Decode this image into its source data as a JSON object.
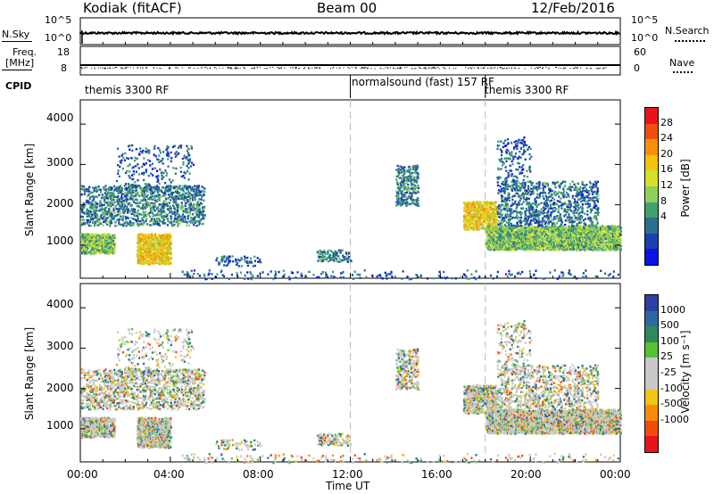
{
  "header": {
    "station": "Kodiak (fitACF)",
    "beam": "Beam 00",
    "date": "12/Feb/2016"
  },
  "top_panel": {
    "left_label": "N.Sky",
    "right_label": "N.Search",
    "left_ticks": [
      "10^5",
      "10^0"
    ],
    "right_ticks": [
      "10^5",
      "10^0"
    ]
  },
  "freq_panel": {
    "left_label_1": "Freq.",
    "left_label_2": "[MHz]",
    "left_ticks": [
      "18",
      "8"
    ],
    "right_label": "Nave",
    "right_ticks": [
      "60",
      "0"
    ]
  },
  "cpid": {
    "label": "CPID",
    "segments": [
      {
        "name": "themis 3300 RF",
        "start_hour": 0
      },
      {
        "name": "normalsound (fast) 157 RF",
        "start_hour": 12
      },
      {
        "name": "themis 3300 RF",
        "start_hour": 18
      }
    ]
  },
  "power_panel": {
    "ylabel": "Slant Range [km]",
    "cbar_label": "Power [dB]",
    "cbar_ticks": [
      "28",
      "24",
      "20",
      "16",
      "12",
      "8",
      "4"
    ],
    "cbar_colors": [
      "#e8141a",
      "#f24f0e",
      "#f88f0a",
      "#f2c40c",
      "#d6e02a",
      "#8fd05a",
      "#3fa070",
      "#2a6e90",
      "#1b3fb0",
      "#0a14e8"
    ]
  },
  "velocity_panel": {
    "ylabel": "Slant Range [km]",
    "cbar_label": "Velocity [m s⁻¹]",
    "cbar_ticks": [
      "1000",
      "500",
      "100",
      "25",
      "-25",
      "-100",
      "-500",
      "-1000"
    ],
    "cbar_colors": [
      "#2a3fa8",
      "#2a6aa0",
      "#2f8a5a",
      "#52c430",
      "#c8c8c8",
      "#c8c8c8",
      "#f2c414",
      "#f88c0a",
      "#f24a0a",
      "#e8141a"
    ]
  },
  "chart_data": {
    "type": "heatmap",
    "title": "Kodiak (fitACF)  Beam 00  12/Feb/2016",
    "xlabel": "Time UT",
    "ylabel": "Slant Range [km]",
    "x_ticks": [
      "00:00",
      "04:00",
      "08:00",
      "12:00",
      "16:00",
      "20:00",
      "00:00"
    ],
    "y_ticks": [
      "1000",
      "2000",
      "3000",
      "4000"
    ],
    "xlim_hours": [
      0,
      24
    ],
    "ylim_km": [
      180,
      4600
    ],
    "scatter_regions": [
      {
        "t0": 0.0,
        "t1": 1.5,
        "r0": 800,
        "r1": 1300,
        "density": 0.85,
        "power": 14
      },
      {
        "t0": 0.0,
        "t1": 5.5,
        "r0": 1500,
        "r1": 2500,
        "density": 0.35,
        "power": 10
      },
      {
        "t0": 2.5,
        "t1": 4.0,
        "r0": 550,
        "r1": 1300,
        "density": 0.8,
        "power": 20
      },
      {
        "t0": 1.5,
        "t1": 5.0,
        "r0": 2400,
        "r1": 3500,
        "density": 0.12,
        "power": 8
      },
      {
        "t0": 6.0,
        "t1": 8.0,
        "r0": 500,
        "r1": 750,
        "density": 0.2,
        "power": 8
      },
      {
        "t0": 10.5,
        "t1": 12.0,
        "r0": 600,
        "r1": 900,
        "density": 0.35,
        "power": 10
      },
      {
        "t0": 14.0,
        "t1": 15.0,
        "r0": 2000,
        "r1": 3000,
        "density": 0.4,
        "power": 10
      },
      {
        "t0": 17.0,
        "t1": 18.5,
        "r0": 1400,
        "r1": 2100,
        "density": 0.7,
        "power": 20
      },
      {
        "t0": 18.0,
        "t1": 24.0,
        "r0": 900,
        "r1": 1500,
        "density": 0.85,
        "power": 14
      },
      {
        "t0": 18.5,
        "t1": 23.0,
        "r0": 1500,
        "r1": 2600,
        "density": 0.3,
        "power": 9
      },
      {
        "t0": 18.5,
        "t1": 20.0,
        "r0": 2500,
        "r1": 3700,
        "density": 0.15,
        "power": 8
      },
      {
        "t0": 4.0,
        "t1": 24.0,
        "r0": 180,
        "r1": 400,
        "density": 0.08,
        "power": 8
      }
    ],
    "cpid_boundaries_hours": [
      12,
      18
    ]
  }
}
